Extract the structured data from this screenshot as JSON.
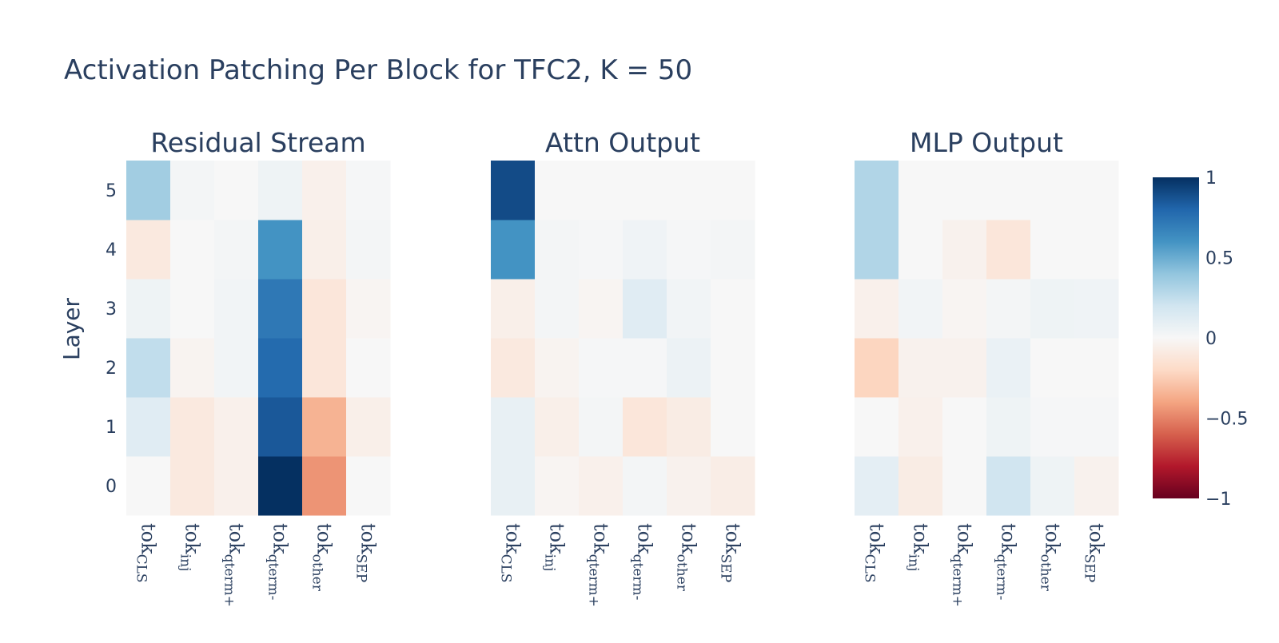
{
  "title": "Activation Patching Per Block for TFC2, K = 50",
  "chart_data": {
    "type": "heatmap",
    "title": "Activation Patching Per Block for TFC2, K = 50",
    "ylabel": "Layer",
    "layers": [
      "0",
      "1",
      "2",
      "3",
      "4",
      "5"
    ],
    "tokens": [
      {
        "base": "tok",
        "sub": "CLS"
      },
      {
        "base": "tok",
        "sub": "inj"
      },
      {
        "base": "tok",
        "sub": "qterm+"
      },
      {
        "base": "tok",
        "sub": "qterm-"
      },
      {
        "base": "tok",
        "sub": "other"
      },
      {
        "base": "tok",
        "sub": "SEP"
      }
    ],
    "colorscale": "RdBu",
    "zmin": -1,
    "zmax": 1,
    "colorbar_ticks": [
      "1",
      "0.5",
      "0",
      "−0.5",
      "−1"
    ],
    "colorbar_tick_values": [
      1,
      0.5,
      0,
      -0.5,
      -1
    ],
    "panels": [
      {
        "title": "Residual Stream",
        "z": [
          [
            0.0,
            -0.1,
            -0.05,
            1.0,
            -0.45,
            0.0
          ],
          [
            0.12,
            -0.1,
            -0.05,
            0.85,
            -0.35,
            -0.06
          ],
          [
            0.25,
            -0.03,
            0.03,
            0.78,
            -0.12,
            0.0
          ],
          [
            0.05,
            0.0,
            0.03,
            0.72,
            -0.12,
            -0.02
          ],
          [
            -0.1,
            0.0,
            0.02,
            0.6,
            -0.06,
            0.02
          ],
          [
            0.35,
            0.02,
            0.0,
            0.05,
            -0.05,
            0.01
          ]
        ]
      },
      {
        "title": "Attn Output",
        "z": [
          [
            0.08,
            -0.02,
            -0.05,
            0.02,
            -0.04,
            -0.07
          ],
          [
            0.08,
            -0.06,
            0.02,
            -0.12,
            -0.08,
            0.0
          ],
          [
            -0.1,
            -0.03,
            0.01,
            0.01,
            0.06,
            0.0
          ],
          [
            -0.06,
            0.02,
            -0.02,
            0.12,
            0.03,
            0.0
          ],
          [
            0.6,
            0.02,
            0.01,
            0.04,
            0.01,
            0.02
          ],
          [
            0.9,
            0.0,
            0.0,
            0.0,
            0.0,
            0.0
          ]
        ]
      },
      {
        "title": "MLP Output",
        "z": [
          [
            0.1,
            -0.08,
            0.0,
            0.2,
            0.05,
            -0.04
          ],
          [
            0.0,
            -0.05,
            0.0,
            0.05,
            0.01,
            0.01
          ],
          [
            -0.22,
            -0.04,
            -0.04,
            0.07,
            0.0,
            0.0
          ],
          [
            -0.05,
            0.03,
            -0.02,
            0.02,
            0.05,
            0.04
          ],
          [
            0.3,
            0.0,
            -0.04,
            -0.12,
            0.0,
            0.0
          ],
          [
            0.3,
            0.0,
            0.0,
            0.0,
            0.0,
            0.0
          ]
        ]
      }
    ]
  }
}
